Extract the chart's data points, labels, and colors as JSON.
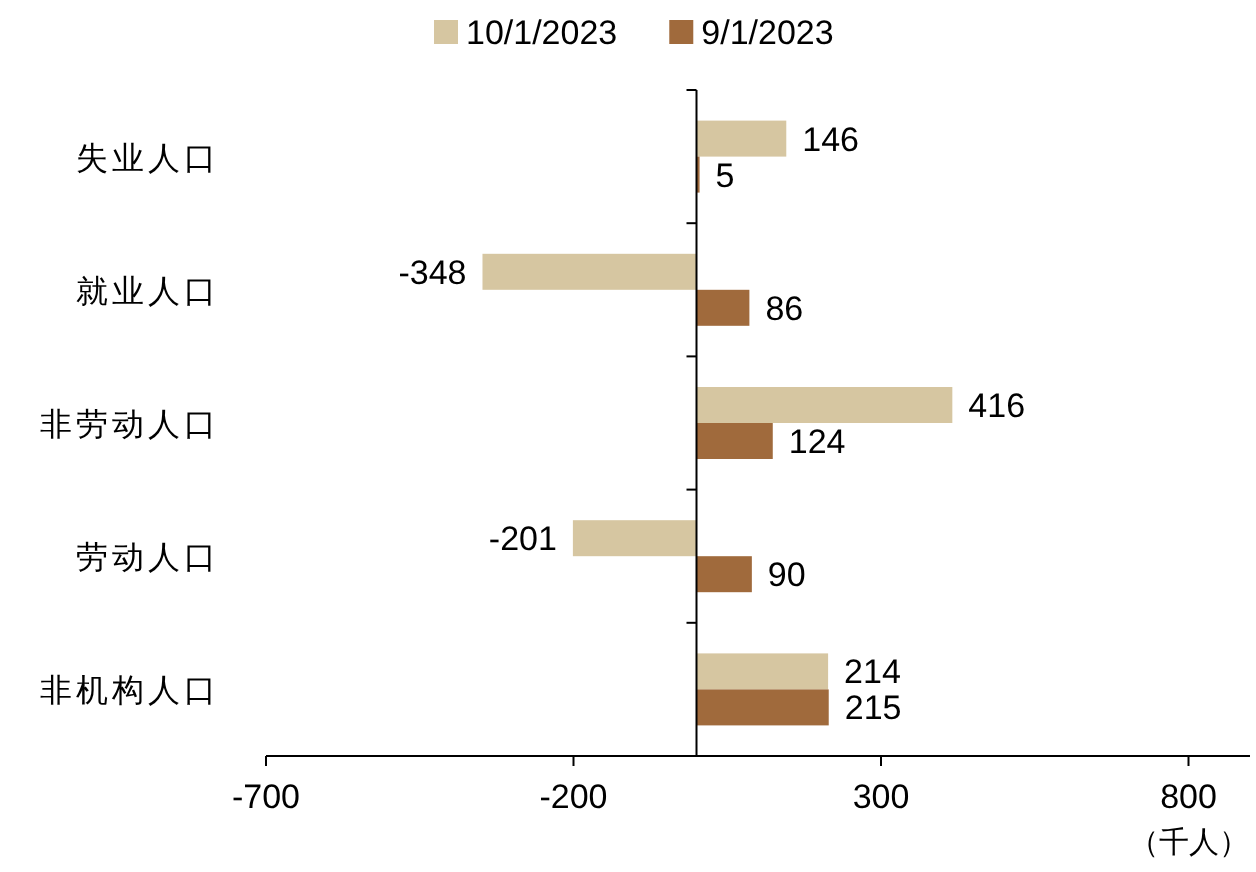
{
  "chart_data": {
    "type": "bar",
    "orientation": "horizontal",
    "categories": [
      "失业人口",
      "就业人口",
      "非劳动人口",
      "劳动人口",
      "非机构人口"
    ],
    "series": [
      {
        "name": "10/1/2023",
        "color": "#d6c6a1",
        "values": [
          146,
          -348,
          416,
          -201,
          214
        ]
      },
      {
        "name": "9/1/2023",
        "color": "#a06a3c",
        "values": [
          5,
          86,
          124,
          90,
          215
        ]
      }
    ],
    "xlim": [
      -700,
      900
    ],
    "xticks": [
      -700,
      -200,
      300,
      800
    ],
    "xlabel": "（千人）",
    "legend": "top",
    "data_labels": true
  }
}
